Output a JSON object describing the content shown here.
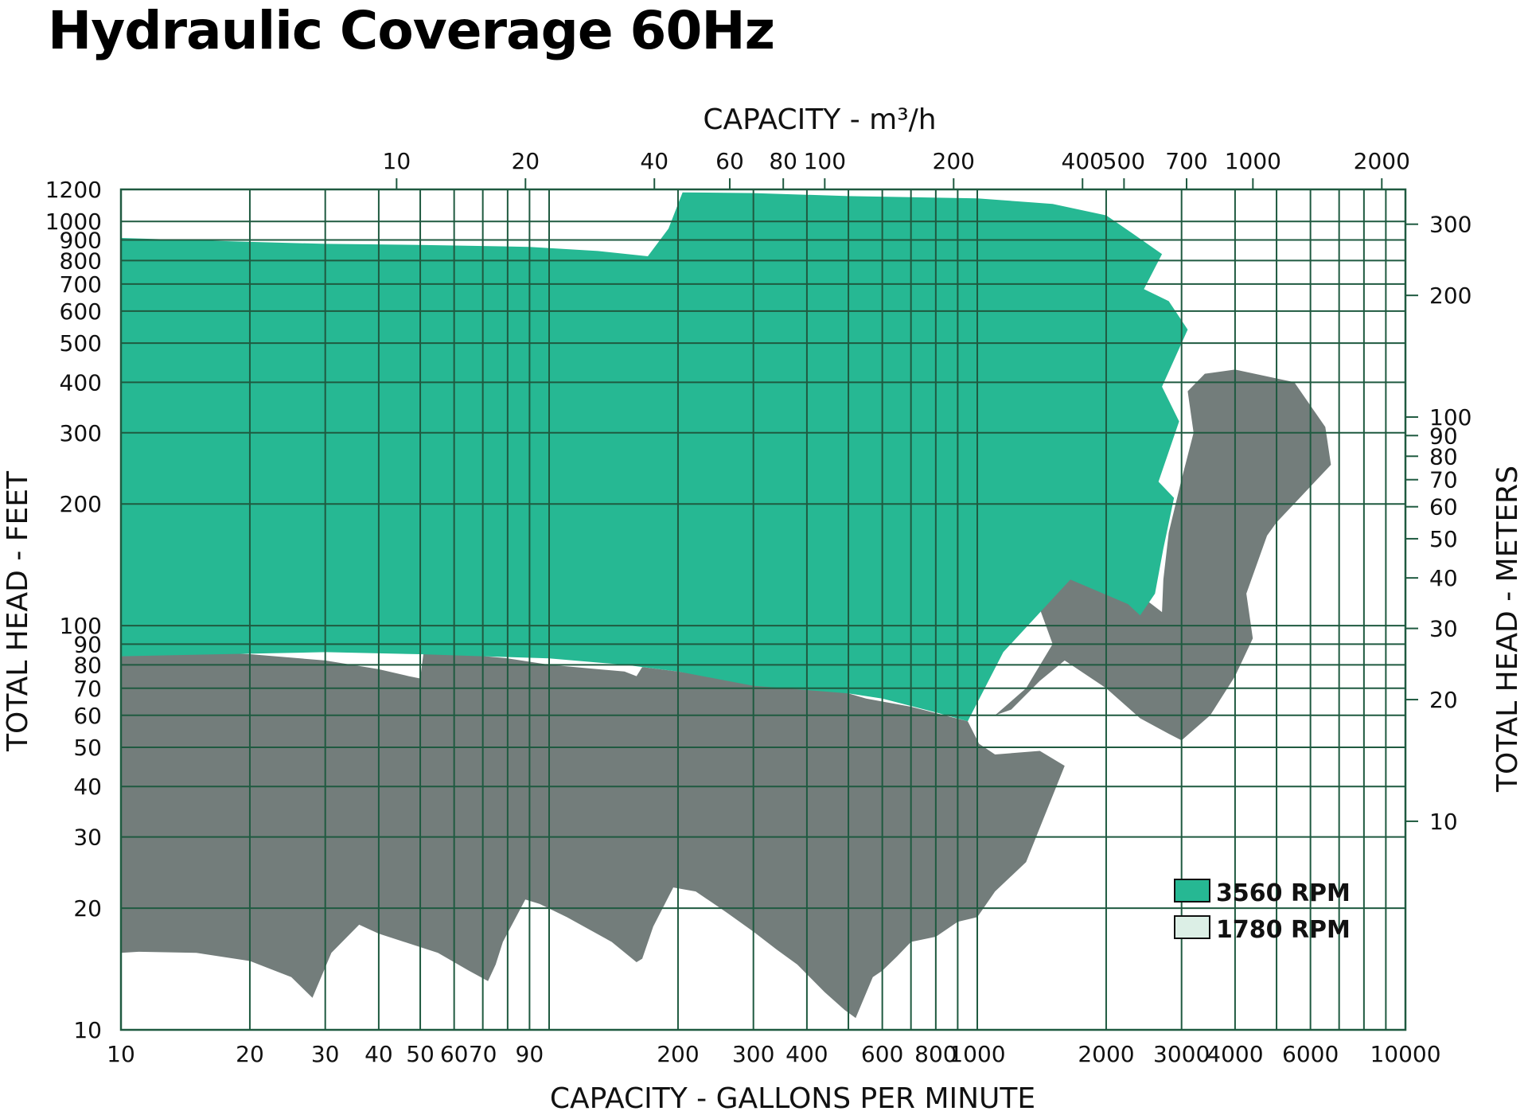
{
  "chart_data": {
    "type": "area",
    "title": "Hydraulic Coverage 60Hz",
    "xlabel": "CAPACITY - GALLONS PER MINUTE",
    "x2label": "CAPACITY - m³/h",
    "ylabel": "TOTAL HEAD - FEET",
    "y2label": "TOTAL HEAD - METERS",
    "xscale": "log",
    "yscale": "log",
    "xlim": [
      10,
      10000
    ],
    "ylim": [
      10,
      1200
    ],
    "grid": true,
    "legend_position": "bottom-right",
    "x_ticks": [
      {
        "v": 10,
        "label": "10"
      },
      {
        "v": 20,
        "label": "20"
      },
      {
        "v": 30,
        "label": "30"
      },
      {
        "v": 40,
        "label": "40"
      },
      {
        "v": 50,
        "label": "50"
      },
      {
        "v": 60,
        "label": "60"
      },
      {
        "v": 70,
        "label": "70"
      },
      {
        "v": 90,
        "label": "90"
      },
      {
        "v": 200,
        "label": "200"
      },
      {
        "v": 300,
        "label": "300"
      },
      {
        "v": 400,
        "label": "400"
      },
      {
        "v": 600,
        "label": "600"
      },
      {
        "v": 800,
        "label": "800"
      },
      {
        "v": 1000,
        "label": "1000"
      },
      {
        "v": 2000,
        "label": "2000"
      },
      {
        "v": 3000,
        "label": "3000"
      },
      {
        "v": 4000,
        "label": "4000"
      },
      {
        "v": 6000,
        "label": "6000"
      },
      {
        "v": 10000,
        "label": "10000"
      }
    ],
    "x_minor_gridlines": [
      80,
      100,
      500,
      700,
      900,
      5000,
      7000,
      8000,
      9000
    ],
    "x2_ticks": [
      {
        "v": 10,
        "label": "10"
      },
      {
        "v": 20,
        "label": "20"
      },
      {
        "v": 40,
        "label": "40"
      },
      {
        "v": 60,
        "label": "60"
      },
      {
        "v": 80,
        "label": "80"
      },
      {
        "v": 100,
        "label": "100"
      },
      {
        "v": 200,
        "label": "200"
      },
      {
        "v": 400,
        "label": "400"
      },
      {
        "v": 500,
        "label": "500"
      },
      {
        "v": 700,
        "label": "700"
      },
      {
        "v": 1000,
        "label": "1000"
      },
      {
        "v": 2000,
        "label": "2000"
      }
    ],
    "y_ticks": [
      {
        "v": 10,
        "label": "10"
      },
      {
        "v": 20,
        "label": "20"
      },
      {
        "v": 30,
        "label": "30"
      },
      {
        "v": 40,
        "label": "40"
      },
      {
        "v": 50,
        "label": "50"
      },
      {
        "v": 60,
        "label": "60"
      },
      {
        "v": 70,
        "label": "70"
      },
      {
        "v": 80,
        "label": "80"
      },
      {
        "v": 90,
        "label": "90"
      },
      {
        "v": 100,
        "label": "100"
      },
      {
        "v": 200,
        "label": "200"
      },
      {
        "v": 300,
        "label": "300"
      },
      {
        "v": 400,
        "label": "400"
      },
      {
        "v": 500,
        "label": "500"
      },
      {
        "v": 600,
        "label": "600"
      },
      {
        "v": 700,
        "label": "700"
      },
      {
        "v": 800,
        "label": "800"
      },
      {
        "v": 900,
        "label": "900"
      },
      {
        "v": 1000,
        "label": "1000"
      },
      {
        "v": 1200,
        "label": "1200"
      }
    ],
    "y2_ticks": [
      {
        "v": 10,
        "label": "10"
      },
      {
        "v": 20,
        "label": "20"
      },
      {
        "v": 30,
        "label": "30"
      },
      {
        "v": 40,
        "label": "40"
      },
      {
        "v": 50,
        "label": "50"
      },
      {
        "v": 60,
        "label": "60"
      },
      {
        "v": 70,
        "label": "70"
      },
      {
        "v": 80,
        "label": "80"
      },
      {
        "v": 90,
        "label": "90"
      },
      {
        "v": 100,
        "label": "100"
      },
      {
        "v": 200,
        "label": "200"
      },
      {
        "v": 300,
        "label": "300"
      }
    ],
    "series": [
      {
        "name": "1780 RPM",
        "legend_swatch": "#dcefe6",
        "fill": "#737d7b",
        "regions": [
          [
            [
              10,
              84
            ],
            [
              15,
              86
            ],
            [
              20,
              85
            ],
            [
              30,
              82
            ],
            [
              40,
              78
            ],
            [
              47,
              75
            ],
            [
              50,
              74
            ],
            [
              51,
              87
            ],
            [
              63,
              86
            ],
            [
              70,
              85
            ],
            [
              71,
              84
            ],
            [
              80,
              83
            ],
            [
              100,
              80
            ],
            [
              150,
              77
            ],
            [
              160,
              75
            ],
            [
              165,
              79
            ],
            [
              200,
              77
            ],
            [
              300,
              72
            ],
            [
              310,
              75
            ],
            [
              500,
              68
            ],
            [
              550,
              66
            ],
            [
              700,
              63
            ],
            [
              950,
              58
            ],
            [
              1010,
              51
            ],
            [
              1100,
              48
            ],
            [
              1400,
              49
            ],
            [
              1600,
              45
            ],
            [
              1300,
              26
            ],
            [
              1100,
              22
            ],
            [
              1000,
              19
            ],
            [
              900,
              18.5
            ],
            [
              800,
              17
            ],
            [
              700,
              16.5
            ],
            [
              650,
              15.2
            ],
            [
              600,
              14
            ],
            [
              570,
              13.5
            ],
            [
              520,
              10.7
            ],
            [
              490,
              11.2
            ],
            [
              440,
              12.4
            ],
            [
              380,
              14.5
            ],
            [
              340,
              15.8
            ],
            [
              300,
              17.5
            ],
            [
              260,
              19.5
            ],
            [
              220,
              22
            ],
            [
              195,
              22.5
            ],
            [
              175,
              18
            ],
            [
              165,
              15
            ],
            [
              160,
              14.7
            ],
            [
              140,
              16.5
            ],
            [
              110,
              19
            ],
            [
              95,
              20.5
            ],
            [
              88,
              21
            ],
            [
              78,
              16.5
            ],
            [
              75,
              14.5
            ],
            [
              72,
              13.2
            ],
            [
              65,
              14
            ],
            [
              55,
              15.5
            ],
            [
              40,
              17.3
            ],
            [
              36,
              18.2
            ],
            [
              31,
              15.5
            ],
            [
              28,
              12
            ],
            [
              25,
              13.5
            ],
            [
              20,
              14.8
            ],
            [
              15,
              15.5
            ],
            [
              11,
              15.6
            ],
            [
              10,
              15.5
            ]
          ],
          [
            [
              950,
              160
            ],
            [
              1400,
              146
            ],
            [
              1600,
              137
            ],
            [
              1650,
              144
            ],
            [
              2300,
              123
            ],
            [
              2700,
              108
            ],
            [
              2720,
              130
            ],
            [
              2800,
              170
            ],
            [
              3000,
              230
            ],
            [
              3200,
              300
            ],
            [
              3100,
              380
            ],
            [
              3400,
              420
            ],
            [
              4000,
              430
            ],
            [
              5500,
              400
            ],
            [
              6500,
              310
            ],
            [
              6700,
              250
            ],
            [
              5000,
              180
            ],
            [
              4750,
              167
            ],
            [
              4250,
              120
            ],
            [
              4400,
              93
            ],
            [
              4000,
              75
            ],
            [
              3500,
              60
            ],
            [
              3000,
              52
            ],
            [
              2800,
              54
            ],
            [
              2400,
              59
            ],
            [
              2000,
              70
            ],
            [
              1600,
              82
            ],
            [
              1400,
              73
            ],
            [
              1200,
              62
            ],
            [
              1100,
              60
            ],
            [
              1300,
              70
            ],
            [
              1500,
              90
            ],
            [
              1400,
              110
            ],
            [
              1200,
              135
            ],
            [
              1000,
              155
            ]
          ]
        ]
      },
      {
        "name": "3560 RPM",
        "legend_swatch": "#26b893",
        "fill": "#26b893",
        "regions": [
          [
            [
              10,
              910
            ],
            [
              20,
              890
            ],
            [
              30,
              880
            ],
            [
              50,
              875
            ],
            [
              90,
              865
            ],
            [
              130,
              845
            ],
            [
              170,
              820
            ],
            [
              190,
              960
            ],
            [
              205,
              1180
            ],
            [
              300,
              1175
            ],
            [
              500,
              1155
            ],
            [
              1000,
              1140
            ],
            [
              1500,
              1105
            ],
            [
              2000,
              1035
            ],
            [
              2300,
              935
            ],
            [
              2700,
              830
            ],
            [
              2450,
              680
            ],
            [
              2800,
              635
            ],
            [
              3100,
              540
            ],
            [
              2700,
              390
            ],
            [
              2960,
              320
            ],
            [
              2650,
              227
            ],
            [
              2880,
              207
            ],
            [
              2720,
              155
            ],
            [
              2600,
              120
            ],
            [
              2400,
              106
            ],
            [
              2250,
              113
            ],
            [
              1650,
              130
            ],
            [
              1150,
              86
            ],
            [
              950,
              58
            ],
            [
              800,
              61
            ],
            [
              600,
              66
            ],
            [
              500,
              68
            ],
            [
              300,
              71
            ],
            [
              200,
              77
            ],
            [
              150,
              80
            ],
            [
              100,
              83
            ],
            [
              70,
              84
            ],
            [
              50,
              85
            ],
            [
              30,
              86
            ],
            [
              10,
              84
            ]
          ]
        ]
      }
    ]
  }
}
